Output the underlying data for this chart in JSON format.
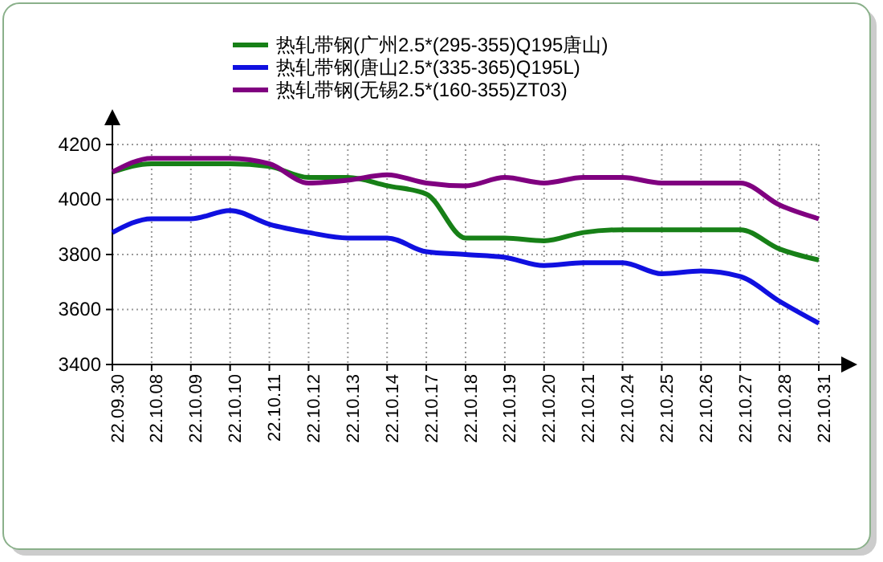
{
  "chart_data": {
    "type": "line",
    "categories": [
      "22.09.30",
      "22.10.08",
      "22.10.09",
      "22.10.10",
      "22.10.11",
      "22.10.12",
      "22.10.13",
      "22.10.14",
      "22.10.17",
      "22.10.18",
      "22.10.19",
      "22.10.20",
      "22.10.21",
      "22.10.24",
      "22.10.25",
      "22.10.26",
      "22.10.27",
      "22.10.28",
      "22.10.31"
    ],
    "series": [
      {
        "name": "热轧带钢(广州2.5*(295-355)Q195唐山)",
        "color": "#178017",
        "values": [
          4100,
          4130,
          4130,
          4130,
          4120,
          4080,
          4080,
          4050,
          4020,
          3860,
          3860,
          3850,
          3880,
          3890,
          3890,
          3890,
          3890,
          3820,
          3780
        ]
      },
      {
        "name": "热轧带钢(唐山2.5*(335-365)Q195L)",
        "color": "#1010e0",
        "values": [
          3880,
          3930,
          3930,
          3960,
          3910,
          3880,
          3860,
          3860,
          3810,
          3800,
          3790,
          3760,
          3770,
          3770,
          3730,
          3740,
          3720,
          3630,
          3550
        ]
      },
      {
        "name": "热轧带钢(无锡2.5*(160-355)ZT03)",
        "color": "#800080",
        "values": [
          4100,
          4150,
          4150,
          4150,
          4130,
          4060,
          4070,
          4090,
          4060,
          4050,
          4080,
          4060,
          4080,
          4080,
          4060,
          4060,
          4060,
          3980,
          3930
        ]
      }
    ],
    "ylim": [
      3400,
      4200
    ],
    "yticks": [
      3400,
      3600,
      3800,
      4000,
      4200
    ],
    "grid": true,
    "legend": "top",
    "line_style": "solid",
    "marker": "none"
  }
}
